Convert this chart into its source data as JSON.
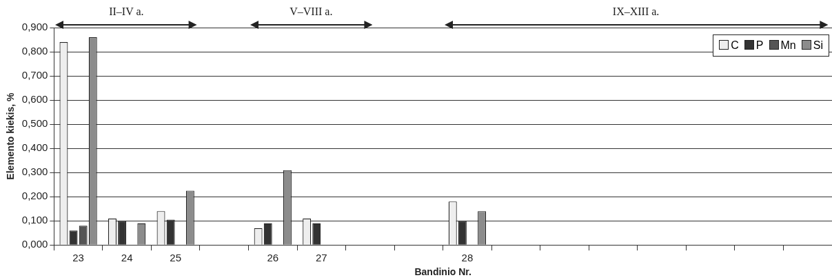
{
  "chart_data": {
    "type": "bar",
    "xlabel": "Bandinio Nr.",
    "ylabel": "Elemento kiekis, %",
    "categories": [
      "23",
      "24",
      "25",
      null,
      "26",
      "27",
      null,
      null,
      "28",
      null,
      null,
      null,
      null,
      null,
      null,
      null
    ],
    "series": [
      {
        "name": "C",
        "color": "#eeeeee",
        "values": [
          0.84,
          0.11,
          0.14,
          null,
          0.07,
          0.11,
          null,
          null,
          0.18,
          null,
          null,
          null,
          null,
          null,
          null,
          null
        ]
      },
      {
        "name": "P",
        "color": "#333333",
        "values": [
          0.06,
          0.1,
          0.105,
          null,
          0.09,
          0.09,
          null,
          null,
          0.1,
          null,
          null,
          null,
          null,
          null,
          null,
          null
        ]
      },
      {
        "name": "Mn",
        "color": "#555555",
        "values": [
          0.08,
          null,
          null,
          null,
          null,
          null,
          null,
          null,
          null,
          null,
          null,
          null,
          null,
          null,
          null,
          null
        ]
      },
      {
        "name": "Si",
        "color": "#8c8c8c",
        "values": [
          0.86,
          0.09,
          0.225,
          null,
          0.31,
          null,
          null,
          null,
          0.14,
          null,
          null,
          null,
          null,
          null,
          null,
          null
        ]
      }
    ],
    "ylim": [
      0,
      0.9
    ],
    "yticks": [
      {
        "value": 0,
        "label": "0,000"
      },
      {
        "value": 0.1,
        "label": "0,100"
      },
      {
        "value": 0.2,
        "label": "0,200"
      },
      {
        "value": 0.3,
        "label": "0,300"
      },
      {
        "value": 0.4,
        "label": "0,400"
      },
      {
        "value": 0.5,
        "label": "0,500"
      },
      {
        "value": 0.6,
        "label": "0,600"
      },
      {
        "value": 0.7,
        "label": "0,700"
      },
      {
        "value": 0.8,
        "label": "0,800"
      },
      {
        "value": 0.9,
        "label": "0,900"
      }
    ],
    "grid": "y",
    "legend": "top right",
    "annotations": [
      "II–IV a.",
      "V–VIII a.",
      "IX–XIII a."
    ]
  }
}
